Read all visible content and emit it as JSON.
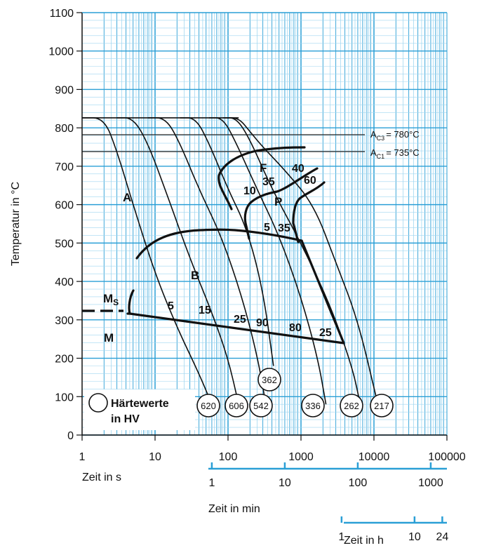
{
  "chart_data": {
    "type": "line",
    "title": "",
    "ylabel": "Temperatur in °C",
    "xlabel": "Zeit in s",
    "xscale": "log",
    "xlim": [
      1,
      100000
    ],
    "ylim": [
      0,
      1100
    ],
    "grid": true,
    "y_ticks": [
      "0",
      "100",
      "200",
      "300",
      "400",
      "500",
      "600",
      "700",
      "800",
      "900",
      "1000",
      "1100"
    ],
    "x_ticks": [
      "1",
      "10",
      "100",
      "1000",
      "10000",
      "100000"
    ],
    "secondary_axes": [
      {
        "label": "Zeit in min",
        "ticks": [
          "1",
          "10",
          "100",
          "1000"
        ],
        "tick_seconds": [
          60,
          600,
          6000,
          60000
        ]
      },
      {
        "label": "Zeit in h",
        "ticks": [
          "1",
          "10",
          "24"
        ],
        "tick_seconds": [
          3600,
          36000,
          86400
        ]
      }
    ],
    "reference_lines": [
      {
        "name": "AC3",
        "label_main": "A",
        "label_sub": "C3",
        "label_rest": "= 780°C",
        "y": 780
      },
      {
        "name": "AC1",
        "label_main": "A",
        "label_sub": "C1",
        "label_rest": "= 735°C",
        "y": 735
      }
    ],
    "cooling_curves": [
      {
        "hardness": "620",
        "points": [
          [
            1,
            826
          ],
          [
            2,
            826
          ],
          [
            3,
            740
          ],
          [
            5,
            600
          ],
          [
            10,
            420
          ],
          [
            20,
            280
          ],
          [
            40,
            160
          ],
          [
            60,
            80
          ]
        ]
      },
      {
        "hardness": "606",
        "points": [
          [
            3,
            826
          ],
          [
            5,
            826
          ],
          [
            8,
            760
          ],
          [
            15,
            620
          ],
          [
            30,
            460
          ],
          [
            60,
            320
          ],
          [
            100,
            200
          ],
          [
            140,
            80
          ]
        ]
      },
      {
        "hardness": "542",
        "points": [
          [
            8,
            826
          ],
          [
            14,
            826
          ],
          [
            22,
            760
          ],
          [
            40,
            640
          ],
          [
            80,
            520
          ],
          [
            150,
            370
          ],
          [
            250,
            210
          ],
          [
            330,
            80
          ]
        ]
      },
      {
        "hardness": "362",
        "points": [
          [
            22,
            826
          ],
          [
            36,
            826
          ],
          [
            55,
            760
          ],
          [
            100,
            640
          ],
          [
            180,
            540
          ],
          [
            300,
            380
          ],
          [
            420,
            180
          ]
        ]
      },
      {
        "hardness": "336",
        "points": [
          [
            55,
            826
          ],
          [
            85,
            826
          ],
          [
            130,
            760
          ],
          [
            250,
            640
          ],
          [
            500,
            520
          ],
          [
            1000,
            360
          ],
          [
            1700,
            200
          ],
          [
            2200,
            80
          ]
        ]
      },
      {
        "hardness": "262",
        "points": [
          [
            85,
            826
          ],
          [
            130,
            826
          ],
          [
            200,
            770
          ],
          [
            400,
            640
          ],
          [
            1000,
            500
          ],
          [
            2500,
            340
          ],
          [
            5000,
            180
          ],
          [
            6500,
            80
          ]
        ]
      },
      {
        "hardness": "217",
        "points": [
          [
            90,
            826
          ],
          [
            140,
            826
          ],
          [
            200,
            790
          ],
          [
            300,
            750
          ],
          [
            600,
            690
          ],
          [
            1500,
            600
          ],
          [
            3000,
            450
          ],
          [
            6000,
            300
          ],
          [
            11000,
            90
          ]
        ]
      }
    ],
    "zone_labels": [
      "A",
      "B",
      "F",
      "P",
      "M",
      "Ms"
    ],
    "phase_percentages": [
      "5",
      "15",
      "25",
      "90",
      "80",
      "25",
      "10",
      "35",
      "40",
      "60",
      "5",
      "35"
    ],
    "hardness_values_hv": [
      "620",
      "606",
      "542",
      "362",
      "336",
      "262",
      "217"
    ],
    "legend": {
      "text_line1": "Härtewerte",
      "text_line2": "in HV"
    }
  },
  "labels": {
    "ms_main": "M",
    "ms_sub": "S",
    "m": "M",
    "a": "A",
    "b": "B",
    "f": "F",
    "p": "P"
  }
}
